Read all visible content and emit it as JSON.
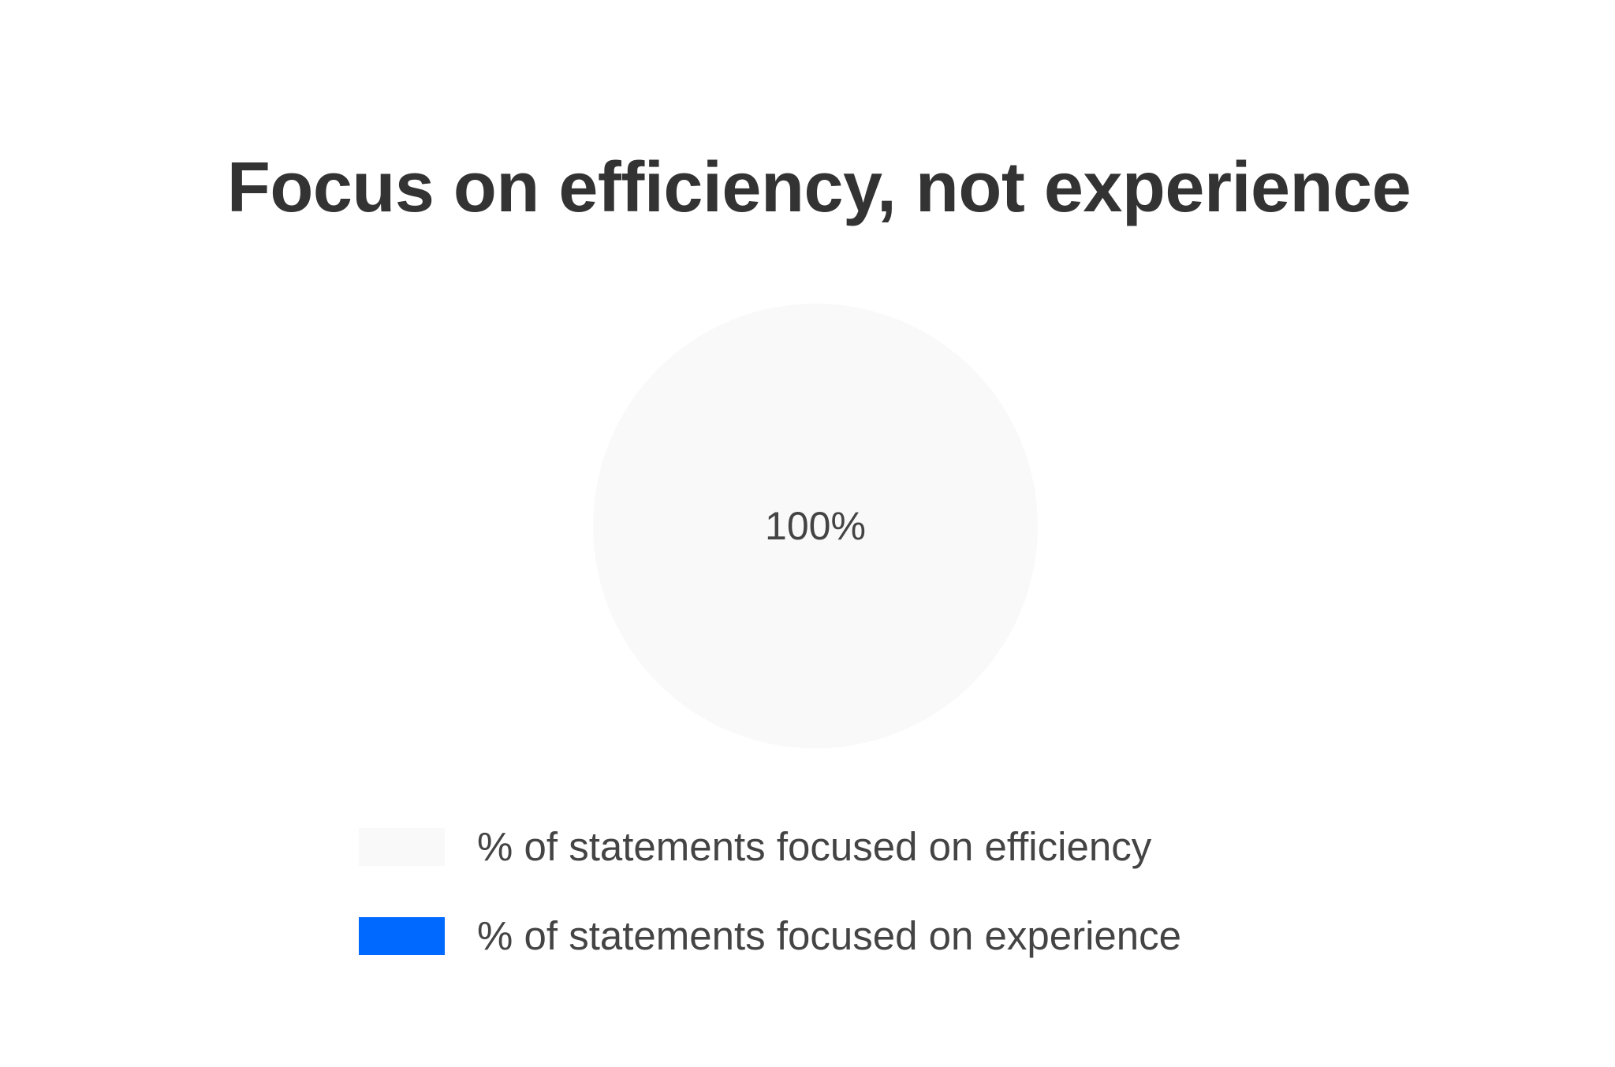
{
  "chart_data": {
    "type": "pie",
    "title": "Focus on efficiency, not experience",
    "slices": [
      {
        "label": "% of statements focused on efficiency",
        "value": 100,
        "display": "100%",
        "color": "#f9f9f9"
      },
      {
        "label": "% of statements focused on experience",
        "value": 0,
        "display": "",
        "color": "#0069ff"
      }
    ],
    "legend_position": "bottom"
  },
  "colors": {
    "title": "#333333",
    "label": "#444444",
    "background": "#ffffff"
  }
}
